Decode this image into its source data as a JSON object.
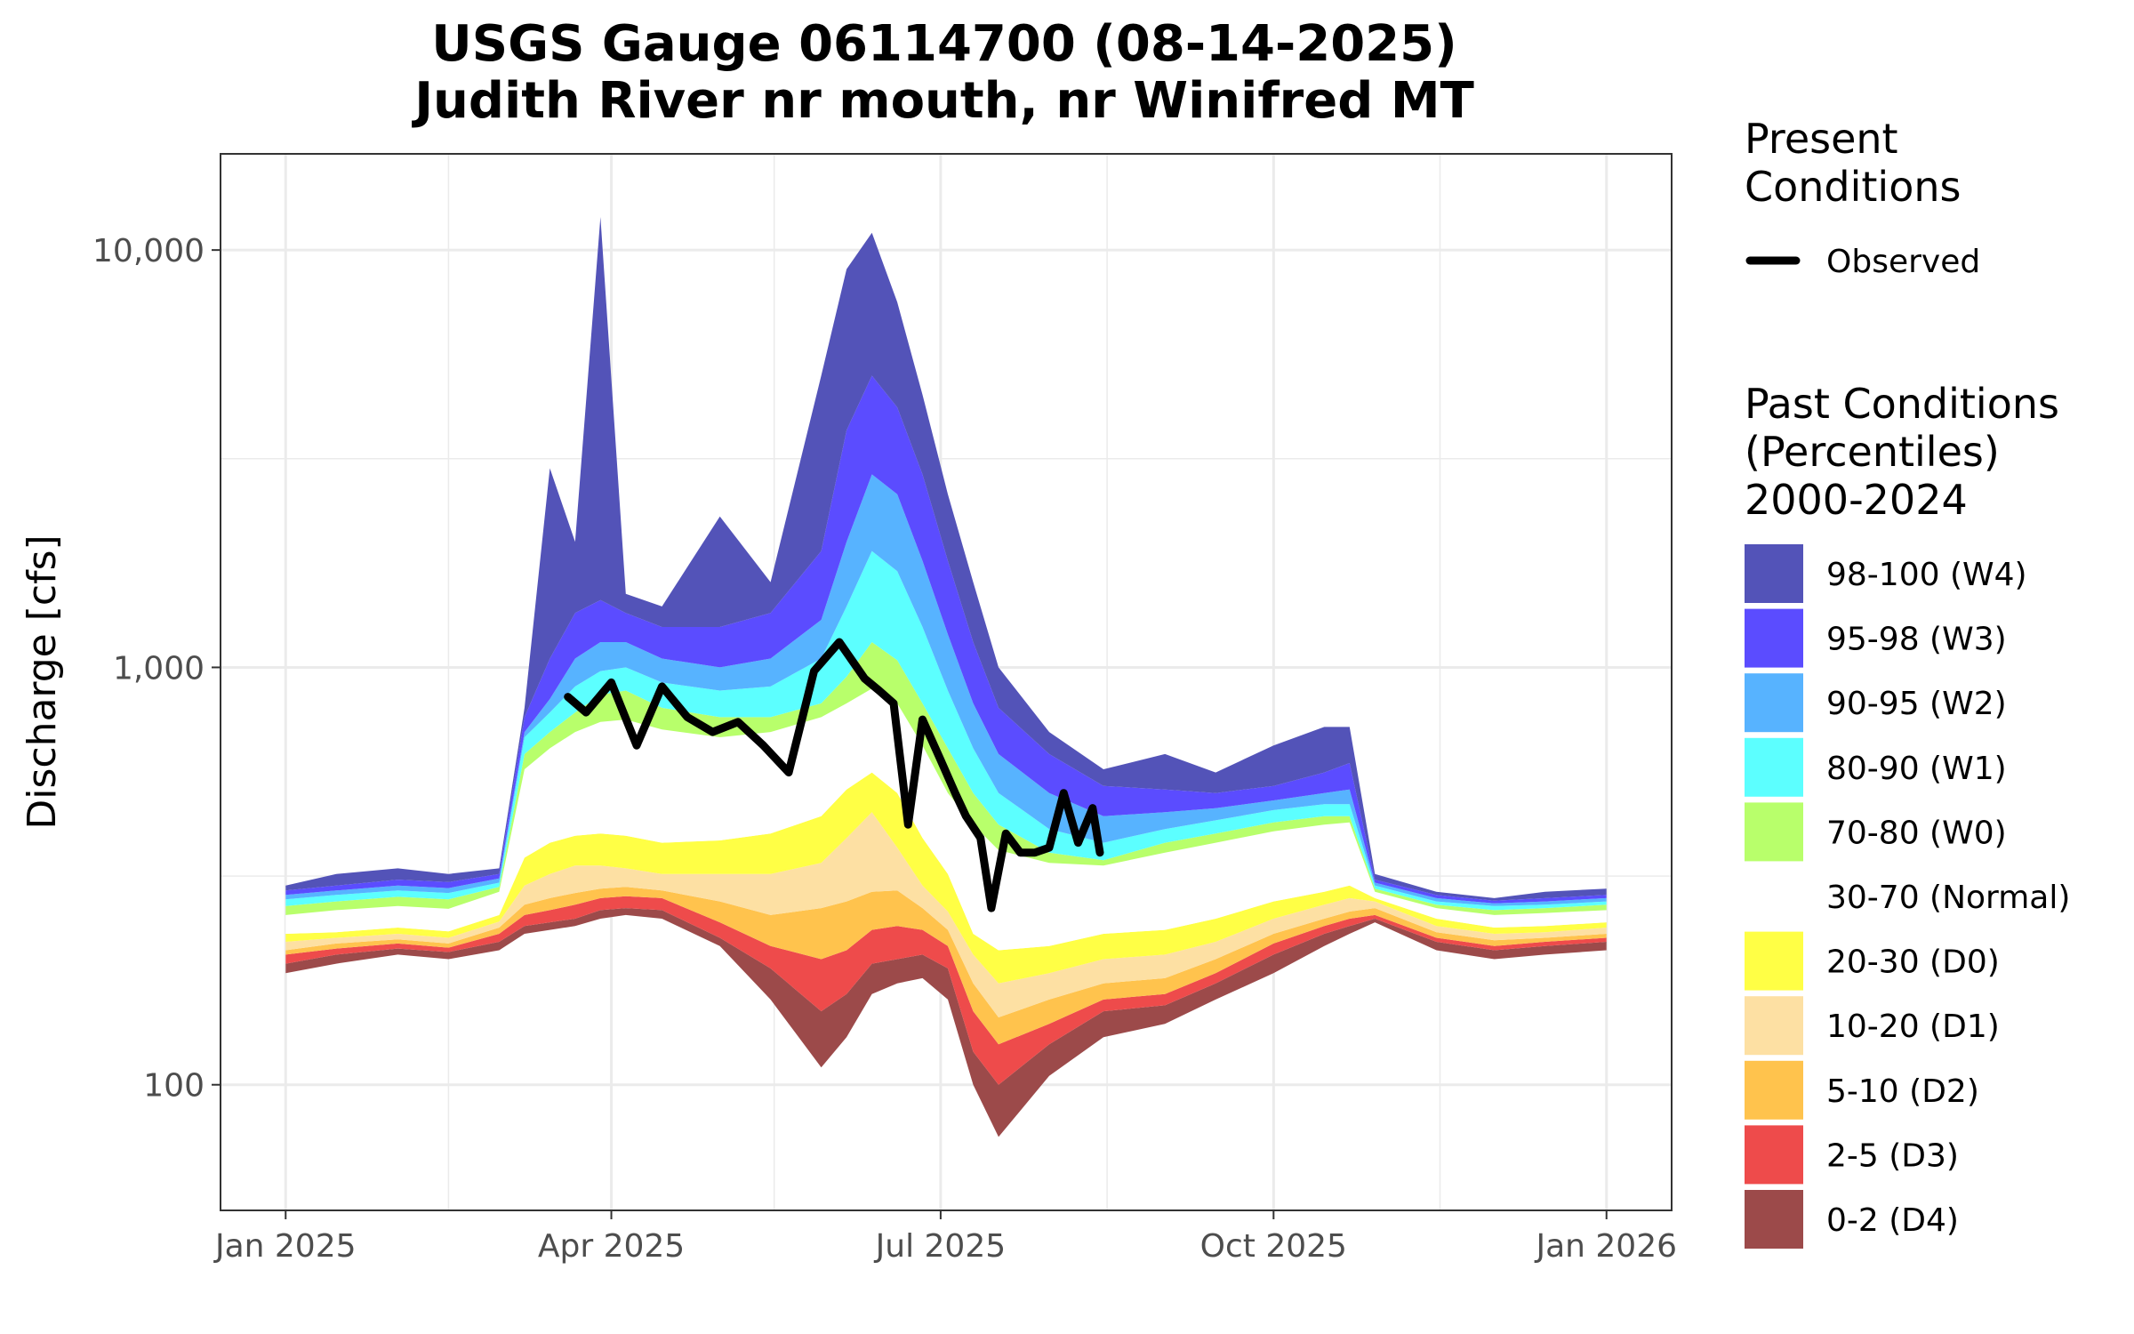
{
  "chart_data": {
    "type": "area",
    "title": [
      "USGS Gauge 06114700 (08-14-2025)",
      "Judith River nr mouth, nr Winifred MT"
    ],
    "ylabel": "Discharge [cfs]",
    "xlabel": "",
    "y_scale": "log",
    "ylim": [
      50,
      17000
    ],
    "xlim": [
      "2024-12-14",
      "2026-01-19"
    ],
    "y_ticks": [
      {
        "value": 100,
        "label": "100"
      },
      {
        "value": 1000,
        "label": "1,000"
      },
      {
        "value": 10000,
        "label": "10,000"
      }
    ],
    "x_ticks": [
      {
        "date": "2025-01-01",
        "label": "Jan 2025"
      },
      {
        "date": "2025-04-01",
        "label": "Apr 2025"
      },
      {
        "date": "2025-07-01",
        "label": "Jul 2025"
      },
      {
        "date": "2025-10-01",
        "label": "Oct 2025"
      },
      {
        "date": "2026-01-01",
        "label": "Jan 2026"
      }
    ],
    "grid": true,
    "legend_position": "right",
    "present_legend": {
      "title": [
        "Present",
        "Conditions"
      ],
      "entries": [
        {
          "label": "Observed",
          "color": "#000000"
        }
      ]
    },
    "past_legend": {
      "title": [
        "Past Conditions",
        "(Percentiles)",
        "2000-2024"
      ],
      "entries": [
        {
          "label": "98-100 (W4)",
          "color": "#5353b8"
        },
        {
          "label": "95-98 (W3)",
          "color": "#5b4cff"
        },
        {
          "label": "90-95 (W2)",
          "color": "#57b3ff"
        },
        {
          "label": "80-90 (W1)",
          "color": "#5cffff"
        },
        {
          "label": "70-80 (W0)",
          "color": "#b8ff6b"
        },
        {
          "label": "30-70 (Normal)",
          "color": "#ffffff"
        },
        {
          "label": "20-30 (D0)",
          "color": "#ffff45"
        },
        {
          "label": "10-20 (D1)",
          "color": "#fde0a3"
        },
        {
          "label": "5-10 (D2)",
          "color": "#ffc34d"
        },
        {
          "label": "2-5 (D3)",
          "color": "#ee4b4b"
        },
        {
          "label": "0-2 (D4)",
          "color": "#9c4a4a"
        }
      ]
    },
    "x": [
      "2025-01-01",
      "2025-01-15",
      "2025-02-01",
      "2025-02-15",
      "2025-03-01",
      "2025-03-08",
      "2025-03-15",
      "2025-03-22",
      "2025-03-29",
      "2025-04-05",
      "2025-04-15",
      "2025-05-01",
      "2025-05-15",
      "2025-05-29",
      "2025-06-05",
      "2025-06-12",
      "2025-06-19",
      "2025-06-26",
      "2025-07-03",
      "2025-07-10",
      "2025-07-17",
      "2025-07-31",
      "2025-08-15",
      "2025-09-01",
      "2025-09-15",
      "2025-10-01",
      "2025-10-15",
      "2025-10-22",
      "2025-10-29",
      "2025-11-15",
      "2025-12-01",
      "2025-12-15",
      "2026-01-01"
    ],
    "band_bounds": [
      {
        "name": "min",
        "values": [
          185,
          195,
          205,
          200,
          210,
          230,
          235,
          240,
          250,
          255,
          250,
          215,
          160,
          110,
          130,
          165,
          175,
          180,
          160,
          100,
          75,
          105,
          130,
          140,
          160,
          185,
          215,
          230,
          245,
          210,
          200,
          205,
          210
        ]
      },
      {
        "name": "p2",
        "values": [
          195,
          205,
          212,
          208,
          220,
          240,
          245,
          250,
          262,
          265,
          262,
          225,
          190,
          150,
          165,
          195,
          200,
          205,
          190,
          120,
          100,
          125,
          150,
          155,
          175,
          205,
          230,
          240,
          250,
          220,
          210,
          215,
          220
        ]
      },
      {
        "name": "p5",
        "values": [
          205,
          212,
          218,
          213,
          230,
          255,
          262,
          270,
          280,
          283,
          280,
          245,
          215,
          200,
          210,
          235,
          240,
          235,
          215,
          150,
          125,
          140,
          160,
          165,
          185,
          218,
          240,
          250,
          255,
          225,
          215,
          220,
          225
        ]
      },
      {
        "name": "p10",
        "values": [
          210,
          218,
          223,
          218,
          238,
          270,
          280,
          288,
          295,
          298,
          292,
          275,
          255,
          265,
          275,
          290,
          292,
          265,
          235,
          175,
          145,
          160,
          175,
          180,
          200,
          230,
          250,
          260,
          265,
          232,
          222,
          225,
          230
        ]
      },
      {
        "name": "p20",
        "values": [
          220,
          225,
          230,
          225,
          246,
          300,
          320,
          335,
          335,
          330,
          320,
          320,
          320,
          340,
          390,
          450,
          370,
          300,
          260,
          205,
          175,
          185,
          200,
          205,
          220,
          250,
          270,
          280,
          275,
          240,
          230,
          232,
          238
        ]
      },
      {
        "name": "p30",
        "values": [
          230,
          232,
          238,
          233,
          255,
          350,
          380,
          395,
          400,
          395,
          380,
          385,
          400,
          440,
          510,
          560,
          500,
          390,
          320,
          230,
          210,
          215,
          230,
          235,
          250,
          275,
          290,
          300,
          280,
          250,
          238,
          240,
          245
        ]
      },
      {
        "name": "p70",
        "values": [
          255,
          262,
          268,
          264,
          290,
          570,
          640,
          700,
          740,
          750,
          710,
          680,
          700,
          760,
          820,
          890,
          820,
          650,
          500,
          420,
          365,
          340,
          335,
          360,
          380,
          405,
          420,
          425,
          290,
          265,
          255,
          258,
          262
        ]
      },
      {
        "name": "p80",
        "values": [
          268,
          275,
          282,
          278,
          298,
          620,
          700,
          780,
          860,
          880,
          800,
          760,
          760,
          820,
          950,
          1150,
          1040,
          820,
          640,
          500,
          420,
          360,
          345,
          380,
          400,
          425,
          440,
          440,
          295,
          270,
          262,
          265,
          270
        ]
      },
      {
        "name": "p90",
        "values": [
          278,
          285,
          292,
          288,
          305,
          680,
          780,
          900,
          980,
          1000,
          920,
          880,
          900,
          1050,
          1400,
          1900,
          1700,
          1250,
          880,
          640,
          500,
          410,
          380,
          410,
          430,
          455,
          470,
          470,
          300,
          275,
          268,
          270,
          275
        ]
      },
      {
        "name": "p95",
        "values": [
          285,
          292,
          300,
          296,
          312,
          700,
          840,
          1050,
          1150,
          1150,
          1050,
          1000,
          1050,
          1300,
          2000,
          2900,
          2600,
          1800,
          1200,
          820,
          620,
          500,
          440,
          450,
          460,
          480,
          500,
          510,
          305,
          280,
          272,
          275,
          280
        ]
      },
      {
        "name": "p98",
        "values": [
          292,
          300,
          310,
          306,
          320,
          760,
          1050,
          1350,
          1450,
          1350,
          1250,
          1250,
          1350,
          1900,
          3700,
          5000,
          4200,
          2900,
          1800,
          1150,
          800,
          620,
          520,
          510,
          500,
          520,
          560,
          590,
          310,
          285,
          276,
          280,
          285
        ]
      },
      {
        "name": "max",
        "values": [
          300,
          320,
          330,
          320,
          330,
          800,
          3000,
          2000,
          12000,
          1500,
          1400,
          2300,
          1600,
          5000,
          9000,
          11000,
          7500,
          4500,
          2600,
          1600,
          1000,
          700,
          570,
          620,
          560,
          650,
          720,
          720,
          320,
          290,
          280,
          290,
          295
        ]
      }
    ],
    "series": [
      {
        "name": "Observed",
        "x": [
          "2025-03-20",
          "2025-03-25",
          "2025-04-01",
          "2025-04-08",
          "2025-04-15",
          "2025-04-22",
          "2025-04-29",
          "2025-05-06",
          "2025-05-13",
          "2025-05-20",
          "2025-05-27",
          "2025-06-03",
          "2025-06-10",
          "2025-06-14",
          "2025-06-18",
          "2025-06-22",
          "2025-06-26",
          "2025-07-01",
          "2025-07-05",
          "2025-07-08",
          "2025-07-12",
          "2025-07-15",
          "2025-07-19",
          "2025-07-23",
          "2025-07-27",
          "2025-07-31",
          "2025-08-04",
          "2025-08-08",
          "2025-08-12",
          "2025-08-14"
        ],
        "values": [
          850,
          780,
          920,
          650,
          900,
          760,
          700,
          740,
          650,
          560,
          980,
          1150,
          940,
          880,
          820,
          420,
          750,
          600,
          500,
          440,
          390,
          265,
          400,
          360,
          360,
          370,
          500,
          380,
          460,
          360
        ]
      }
    ]
  }
}
